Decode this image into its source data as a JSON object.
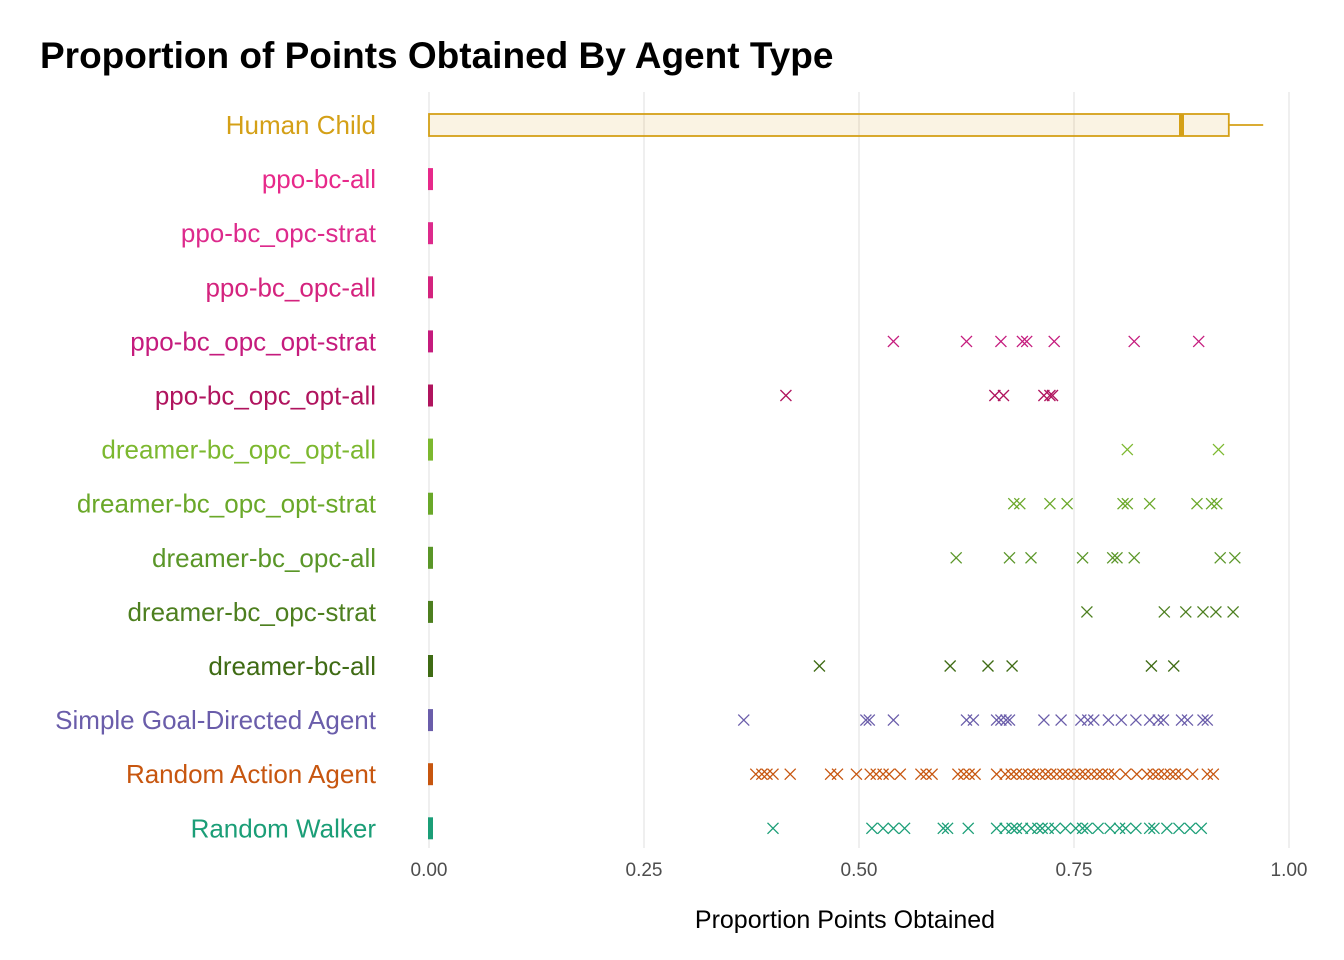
{
  "chart_data": {
    "type": "boxplot-with-points",
    "title": "Proportion of Points Obtained By Agent Type",
    "xlabel": "Proportion Points Obtained",
    "ylabel": "",
    "xlim": [
      0.0,
      1.0
    ],
    "xticks": [
      0.0,
      0.25,
      0.5,
      0.75,
      1.0
    ],
    "xtick_labels": [
      "0.00",
      "0.25",
      "0.50",
      "0.75",
      "1.00"
    ],
    "grid": "vertical major lines",
    "legend": "none",
    "categories": [
      {
        "label": "Human Child",
        "color": "#D4A017",
        "box": {
          "q1": 0.0,
          "median": 0.875,
          "q3": 0.93,
          "whisker_low": 0.0,
          "whisker_high": 0.97
        },
        "points": []
      },
      {
        "label": "ppo-bc-all",
        "color": "#E7298A",
        "box": {
          "q1": 0.0,
          "median": 0.0,
          "q3": 0.0,
          "whisker_low": 0.0,
          "whisker_high": 0.0
        },
        "points": []
      },
      {
        "label": "ppo-bc_opc-strat",
        "color": "#DD2A8C",
        "box": {
          "q1": 0.0,
          "median": 0.0,
          "q3": 0.0,
          "whisker_low": 0.0,
          "whisker_high": 0.0
        },
        "points": []
      },
      {
        "label": "ppo-bc_opc-all",
        "color": "#D4237E",
        "box": {
          "q1": 0.0,
          "median": 0.0,
          "q3": 0.0,
          "whisker_low": 0.0,
          "whisker_high": 0.0
        },
        "points": []
      },
      {
        "label": "ppo-bc_opc_opt-strat",
        "color": "#C51B7D",
        "box": {
          "q1": 0.0,
          "median": 0.0,
          "q3": 0.0,
          "whisker_low": 0.0,
          "whisker_high": 0.0
        },
        "points": [
          0.54,
          0.625,
          0.665,
          0.69,
          0.695,
          0.727,
          0.82,
          0.895
        ]
      },
      {
        "label": "ppo-bc_opc_opt-all",
        "color": "#B0145E",
        "box": {
          "q1": 0.0,
          "median": 0.0,
          "q3": 0.0,
          "whisker_low": 0.0,
          "whisker_high": 0.0
        },
        "points": [
          0.415,
          0.658,
          0.668,
          0.715,
          0.722,
          0.725
        ]
      },
      {
        "label": "dreamer-bc_opc_opt-all",
        "color": "#7CB82F",
        "box": {
          "q1": 0.0,
          "median": 0.0,
          "q3": 0.0,
          "whisker_low": 0.0,
          "whisker_high": 0.0
        },
        "points": [
          0.812,
          0.918
        ]
      },
      {
        "label": "dreamer-bc_opc_opt-strat",
        "color": "#6AA829",
        "box": {
          "q1": 0.0,
          "median": 0.0,
          "q3": 0.0,
          "whisker_low": 0.0,
          "whisker_high": 0.0
        },
        "points": [
          0.68,
          0.687,
          0.722,
          0.742,
          0.807,
          0.812,
          0.838,
          0.893,
          0.91,
          0.916
        ]
      },
      {
        "label": "dreamer-bc_opc-all",
        "color": "#5A9628",
        "box": {
          "q1": 0.0,
          "median": 0.0,
          "q3": 0.0,
          "whisker_low": 0.0,
          "whisker_high": 0.0
        },
        "points": [
          0.613,
          0.675,
          0.7,
          0.76,
          0.795,
          0.8,
          0.82,
          0.92,
          0.937
        ]
      },
      {
        "label": "dreamer-bc_opc-strat",
        "color": "#4D7F1F",
        "box": {
          "q1": 0.0,
          "median": 0.0,
          "q3": 0.0,
          "whisker_low": 0.0,
          "whisker_high": 0.0
        },
        "points": [
          0.765,
          0.855,
          0.88,
          0.9,
          0.915,
          0.935
        ]
      },
      {
        "label": "dreamer-bc-all",
        "color": "#3F6B14",
        "box": {
          "q1": 0.0,
          "median": 0.0,
          "q3": 0.0,
          "whisker_low": 0.0,
          "whisker_high": 0.0
        },
        "points": [
          0.454,
          0.606,
          0.65,
          0.678,
          0.84,
          0.866
        ]
      },
      {
        "label": "Simple Goal-Directed Agent",
        "color": "#6A5DAA",
        "box": {
          "q1": 0.0,
          "median": 0.0,
          "q3": 0.0,
          "whisker_low": 0.0,
          "whisker_high": 0.0
        },
        "points": [
          0.366,
          0.508,
          0.512,
          0.54,
          0.625,
          0.633,
          0.66,
          0.665,
          0.671,
          0.675,
          0.715,
          0.735,
          0.758,
          0.766,
          0.773,
          0.79,
          0.805,
          0.822,
          0.838,
          0.848,
          0.854,
          0.875,
          0.882,
          0.9,
          0.905
        ]
      },
      {
        "label": "Random Action Agent",
        "color": "#C7560F",
        "box": {
          "q1": 0.0,
          "median": 0.0,
          "q3": 0.0,
          "whisker_low": 0.0,
          "whisker_high": 0.0
        },
        "points": [
          0.38,
          0.387,
          0.393,
          0.4,
          0.42,
          0.467,
          0.475,
          0.497,
          0.513,
          0.52,
          0.528,
          0.535,
          0.548,
          0.572,
          0.578,
          0.585,
          0.615,
          0.622,
          0.628,
          0.635,
          0.66,
          0.67,
          0.677,
          0.683,
          0.69,
          0.697,
          0.703,
          0.71,
          0.717,
          0.723,
          0.73,
          0.737,
          0.743,
          0.75,
          0.757,
          0.763,
          0.77,
          0.777,
          0.783,
          0.79,
          0.797,
          0.81,
          0.823,
          0.835,
          0.842,
          0.848,
          0.855,
          0.862,
          0.868,
          0.875,
          0.888,
          0.905,
          0.912
        ]
      },
      {
        "label": "Random Walker",
        "color": "#1B9E77",
        "box": {
          "q1": 0.0,
          "median": 0.0,
          "q3": 0.0,
          "whisker_low": 0.0,
          "whisker_high": 0.0
        },
        "points": [
          0.4,
          0.515,
          0.528,
          0.54,
          0.553,
          0.598,
          0.603,
          0.627,
          0.66,
          0.67,
          0.678,
          0.683,
          0.69,
          0.7,
          0.708,
          0.713,
          0.72,
          0.728,
          0.74,
          0.752,
          0.76,
          0.765,
          0.778,
          0.792,
          0.803,
          0.81,
          0.822,
          0.838,
          0.843,
          0.858,
          0.872,
          0.885,
          0.898
        ]
      }
    ]
  }
}
